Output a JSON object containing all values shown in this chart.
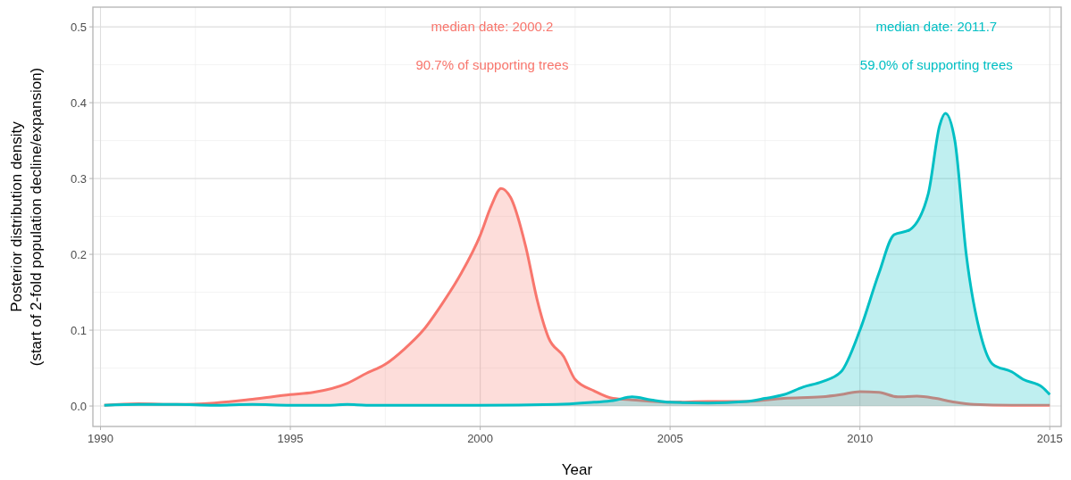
{
  "chart_data": {
    "type": "area",
    "xlabel": "Year",
    "ylabel": "Posterior distribution density\n(start of 2-fold population decline/expansion)",
    "xlim": [
      1989.8,
      2015.3
    ],
    "ylim": [
      -0.027,
      0.526
    ],
    "xticks": [
      1990,
      1995,
      2000,
      2005,
      2010,
      2015
    ],
    "yticks": [
      {
        "value": 0,
        "label": "0.0"
      },
      0.1,
      0.2,
      0.3,
      0.4,
      0.5
    ],
    "grid": true,
    "series": [
      {
        "color": "#f8766d",
        "x": [
          1990.1,
          1991,
          1992,
          1993,
          1994,
          1995,
          1995.6,
          1996.5,
          1997,
          1997.5,
          1998,
          1998.5,
          1999,
          1999.5,
          2000,
          2000.3,
          2000.55,
          2000.8,
          2001.2,
          2001.5,
          2001.8,
          2002.2,
          2002.5,
          2003,
          2003.5,
          2004,
          2005,
          2006,
          2007,
          2008,
          2009,
          2009.5,
          2010,
          2010.5,
          2011,
          2011.5,
          2012,
          2012.5,
          2013,
          2014,
          2015
        ],
        "values": [
          0.001,
          0.003,
          0.002,
          0.004,
          0.009,
          0.015,
          0.018,
          0.03,
          0.043,
          0.055,
          0.075,
          0.1,
          0.135,
          0.175,
          0.225,
          0.265,
          0.287,
          0.275,
          0.21,
          0.14,
          0.09,
          0.065,
          0.035,
          0.02,
          0.01,
          0.008,
          0.005,
          0.006,
          0.006,
          0.01,
          0.012,
          0.015,
          0.019,
          0.018,
          0.012,
          0.013,
          0.01,
          0.005,
          0.002,
          0.001,
          0.001
        ]
      },
      {
        "color": "#00bfc4",
        "x": [
          1990.1,
          1991,
          1992,
          1993,
          1994,
          1995,
          1996,
          1996.5,
          1997,
          2000,
          2002,
          2003,
          2003.5,
          2004,
          2004.5,
          2005,
          2006,
          2007,
          2007.5,
          2008,
          2008.5,
          2009,
          2009.5,
          2010,
          2010.5,
          2010.9,
          2011.3,
          2011.8,
          2012.1,
          2012.25,
          2012.5,
          2012.8,
          2013.2,
          2013.5,
          2014,
          2014.3,
          2014.8,
          2015
        ],
        "values": [
          0.001,
          0.002,
          0.002,
          0.001,
          0.002,
          0.001,
          0.001,
          0.002,
          0.001,
          0.001,
          0.002,
          0.005,
          0.007,
          0.012,
          0.008,
          0.005,
          0.004,
          0.006,
          0.01,
          0.015,
          0.025,
          0.032,
          0.045,
          0.1,
          0.175,
          0.226,
          0.232,
          0.28,
          0.37,
          0.386,
          0.35,
          0.2,
          0.09,
          0.055,
          0.045,
          0.035,
          0.025,
          0.015
        ]
      }
    ],
    "annotations": [
      "median date: 2000.2",
      "90.7% of supporting trees",
      "median date: 2011.7",
      "59.0% of supporting trees"
    ]
  }
}
